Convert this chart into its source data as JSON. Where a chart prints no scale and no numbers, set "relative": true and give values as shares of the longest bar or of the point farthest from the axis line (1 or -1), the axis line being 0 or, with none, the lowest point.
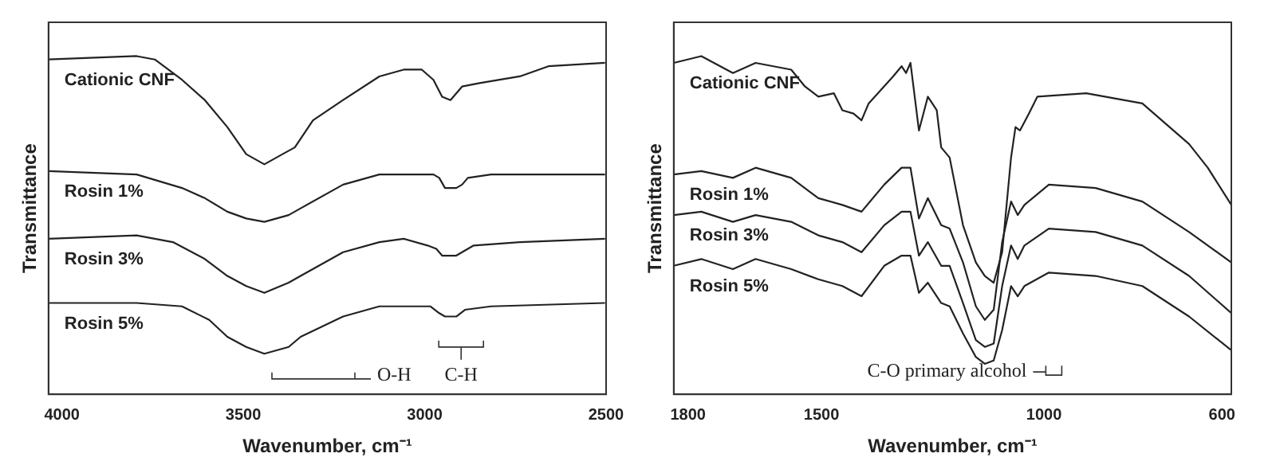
{
  "chart_data": [
    {
      "type": "line",
      "relative": true,
      "xlabel": "Wavenumber, cm⁻¹",
      "ylabel": "Transmittance",
      "xlim": [
        4037,
        2500
      ],
      "xticks": [
        4000,
        3500,
        3000,
        2500
      ],
      "grid": false,
      "legend": false,
      "series": [
        {
          "name": "Cationic CNF",
          "color": "#222222",
          "x": [
            4037,
            3794,
            3744,
            3669,
            3606,
            3544,
            3492,
            3442,
            3392,
            3358,
            3308,
            3225,
            3125,
            3058,
            3008,
            2976,
            2952,
            2929,
            2897,
            2849,
            2738,
            2659,
            2503
          ],
          "values": [
            0.99,
            1.0,
            0.99,
            0.93,
            0.87,
            0.79,
            0.71,
            0.68,
            0.71,
            0.73,
            0.81,
            0.87,
            0.94,
            0.96,
            0.96,
            0.93,
            0.88,
            0.87,
            0.91,
            0.92,
            0.94,
            0.97,
            0.98
          ]
        },
        {
          "name": "Rosin 1%",
          "color": "#222222",
          "x": [
            4037,
            3794,
            3669,
            3606,
            3544,
            3492,
            3442,
            3375,
            3342,
            3225,
            3125,
            3058,
            2976,
            2960,
            2944,
            2913,
            2897,
            2881,
            2817,
            2503
          ],
          "values": [
            0.66,
            0.65,
            0.61,
            0.58,
            0.54,
            0.52,
            0.51,
            0.53,
            0.55,
            0.62,
            0.65,
            0.65,
            0.65,
            0.64,
            0.61,
            0.61,
            0.62,
            0.64,
            0.65,
            0.65
          ]
        },
        {
          "name": "Rosin 3%",
          "color": "#222222",
          "x": [
            4037,
            3794,
            3694,
            3606,
            3544,
            3492,
            3442,
            3375,
            3342,
            3225,
            3125,
            3058,
            2992,
            2968,
            2952,
            2913,
            2897,
            2865,
            2738,
            2503
          ],
          "values": [
            0.46,
            0.47,
            0.45,
            0.4,
            0.35,
            0.32,
            0.3,
            0.33,
            0.35,
            0.42,
            0.45,
            0.46,
            0.44,
            0.43,
            0.41,
            0.41,
            0.42,
            0.44,
            0.45,
            0.46
          ]
        },
        {
          "name": "Rosin 5%",
          "color": "#222222",
          "x": [
            4037,
            3794,
            3669,
            3594,
            3544,
            3492,
            3442,
            3375,
            3342,
            3225,
            3125,
            3058,
            2984,
            2960,
            2944,
            2913,
            2889,
            2817,
            2503
          ],
          "values": [
            0.27,
            0.27,
            0.26,
            0.22,
            0.17,
            0.14,
            0.12,
            0.14,
            0.17,
            0.23,
            0.26,
            0.26,
            0.26,
            0.24,
            0.23,
            0.23,
            0.25,
            0.26,
            0.27
          ]
        }
      ],
      "annotations": [
        "O-H",
        "C-H"
      ]
    },
    {
      "type": "line",
      "relative": true,
      "xlabel": "Wavenumber, cm⁻¹",
      "ylabel": "Transmittance",
      "xlim": [
        1832,
        579
      ],
      "xticks": [
        1800,
        1500,
        1000,
        600
      ],
      "grid": false,
      "legend": false,
      "series": [
        {
          "name": "Cationic CNF",
          "color": "#222222",
          "x": [
            1832,
            1770,
            1699,
            1648,
            1568,
            1537,
            1507,
            1472,
            1453,
            1428,
            1410,
            1394,
            1339,
            1320,
            1310,
            1300,
            1281,
            1261,
            1241,
            1231,
            1212,
            1182,
            1153,
            1133,
            1113,
            1094,
            1074,
            1064,
            1054,
            1034,
            1015,
            905,
            779,
            674,
            632,
            579
          ],
          "values": [
            0.98,
            1.0,
            0.95,
            0.98,
            0.96,
            0.91,
            0.88,
            0.89,
            0.84,
            0.83,
            0.81,
            0.86,
            0.94,
            0.97,
            0.95,
            0.98,
            0.78,
            0.88,
            0.84,
            0.73,
            0.7,
            0.5,
            0.39,
            0.35,
            0.33,
            0.42,
            0.7,
            0.79,
            0.78,
            0.83,
            0.88,
            0.89,
            0.86,
            0.74,
            0.67,
            0.56
          ]
        },
        {
          "name": "Rosin 1%",
          "color": "#222222",
          "x": [
            1832,
            1770,
            1699,
            1648,
            1568,
            1507,
            1453,
            1410,
            1359,
            1320,
            1300,
            1281,
            1261,
            1231,
            1212,
            1182,
            1153,
            1133,
            1113,
            1094,
            1074,
            1059,
            1044,
            989,
            884,
            779,
            674,
            579
          ],
          "values": [
            0.65,
            0.66,
            0.64,
            0.67,
            0.64,
            0.58,
            0.56,
            0.54,
            0.62,
            0.67,
            0.67,
            0.52,
            0.58,
            0.5,
            0.49,
            0.39,
            0.26,
            0.22,
            0.25,
            0.45,
            0.57,
            0.53,
            0.56,
            0.62,
            0.61,
            0.57,
            0.48,
            0.39
          ]
        },
        {
          "name": "Rosin 3%",
          "color": "#222222",
          "x": [
            1832,
            1770,
            1699,
            1648,
            1568,
            1507,
            1453,
            1410,
            1359,
            1320,
            1300,
            1281,
            1261,
            1231,
            1212,
            1182,
            1153,
            1133,
            1113,
            1094,
            1074,
            1059,
            1044,
            989,
            884,
            779,
            674,
            579
          ],
          "values": [
            0.53,
            0.54,
            0.51,
            0.53,
            0.51,
            0.47,
            0.45,
            0.42,
            0.5,
            0.54,
            0.54,
            0.41,
            0.45,
            0.38,
            0.38,
            0.27,
            0.16,
            0.14,
            0.15,
            0.32,
            0.44,
            0.4,
            0.44,
            0.49,
            0.48,
            0.44,
            0.35,
            0.24
          ]
        },
        {
          "name": "Rosin 5%",
          "color": "#222222",
          "x": [
            1832,
            1770,
            1699,
            1648,
            1568,
            1507,
            1453,
            1410,
            1359,
            1320,
            1300,
            1281,
            1261,
            1231,
            1212,
            1182,
            1153,
            1133,
            1113,
            1094,
            1074,
            1059,
            1044,
            989,
            884,
            779,
            674,
            579
          ],
          "values": [
            0.38,
            0.4,
            0.37,
            0.4,
            0.37,
            0.34,
            0.32,
            0.29,
            0.38,
            0.41,
            0.41,
            0.3,
            0.33,
            0.27,
            0.26,
            0.18,
            0.11,
            0.09,
            0.1,
            0.19,
            0.32,
            0.29,
            0.32,
            0.36,
            0.35,
            0.32,
            0.23,
            0.13
          ]
        }
      ],
      "annotations": [
        "C-O primary alcohol"
      ]
    }
  ]
}
